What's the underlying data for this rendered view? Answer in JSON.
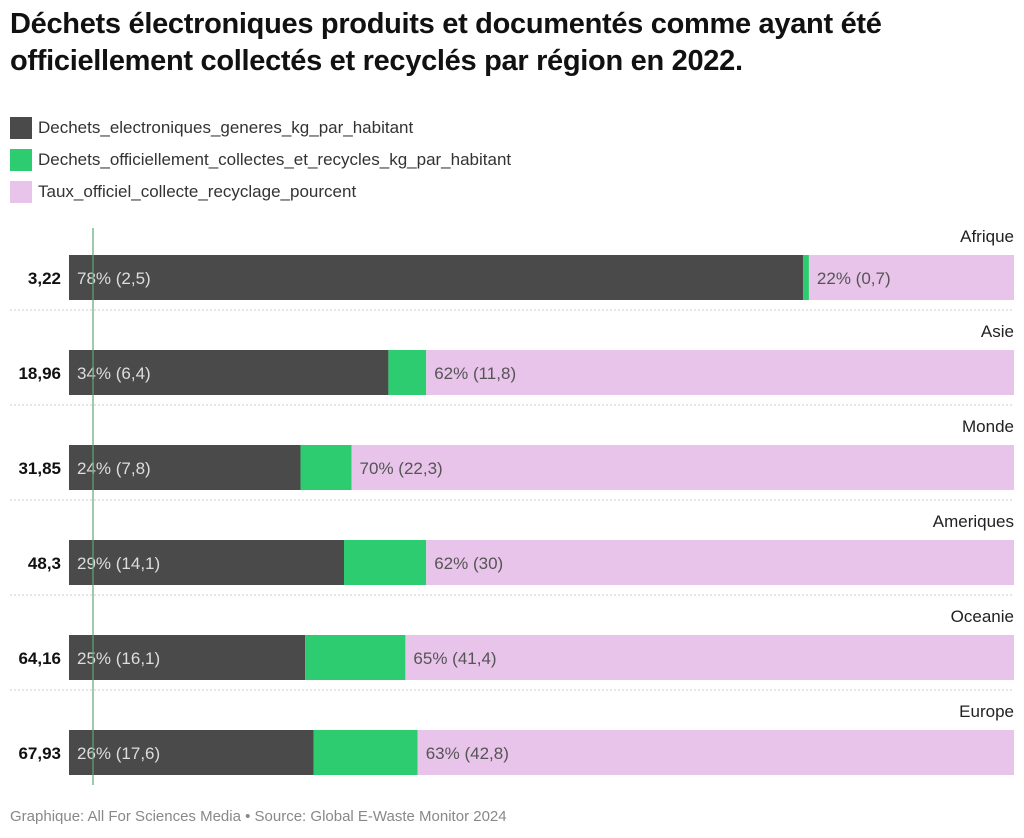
{
  "title": "Déchets électroniques produits et documentés comme ayant été officiellement collectés et recyclés par région en 2022.",
  "footer": "Graphique: All For Sciences Media • Source: Global E-Waste Monitor 2024",
  "chart_data": {
    "type": "bar",
    "stacked": true,
    "orientation": "horizontal",
    "colors": {
      "dark": "#4a4a4a",
      "green": "#2ecc71",
      "pink": "#e8c3ea",
      "refline": "#5aa873"
    },
    "legend": [
      {
        "label": "Dechets_electroniques_generes_kg_par_habitant",
        "color": "#4a4a4a"
      },
      {
        "label": "Dechets_officiellement_collectes_et_recycles_kg_par_habitant",
        "color": "#2ecc71"
      },
      {
        "label": "Taux_officiel_collecte_recyclage_pourcent",
        "color": "#e8c3ea"
      }
    ],
    "rows": [
      {
        "category": "Afrique",
        "total": "3,22",
        "dark_share": 0.777,
        "green_share": 0.006,
        "dark_label": "78% (2,5)",
        "pink_label": "22% (0,7)"
      },
      {
        "category": "Asie",
        "total": "18,96",
        "dark_share": 0.338,
        "green_share": 0.04,
        "dark_label": "34% (6,4)",
        "pink_label": "62% (11,8)"
      },
      {
        "category": "Monde",
        "total": "31,85",
        "dark_share": 0.245,
        "green_share": 0.054,
        "dark_label": "24% (7,8)",
        "pink_label": "70% (22,3)"
      },
      {
        "category": "Ameriques",
        "total": "48,3",
        "dark_share": 0.291,
        "green_share": 0.087,
        "dark_label": "29% (14,1)",
        "pink_label": "62% (30)"
      },
      {
        "category": "Oceanie",
        "total": "64,16",
        "dark_share": 0.25,
        "green_share": 0.106,
        "dark_label": "25% (16,1)",
        "pink_label": "65% (41,4)"
      },
      {
        "category": "Europe",
        "total": "67,93",
        "dark_share": 0.259,
        "green_share": 0.11,
        "dark_label": "26% (17,6)",
        "pink_label": "63% (42,8)"
      }
    ]
  }
}
